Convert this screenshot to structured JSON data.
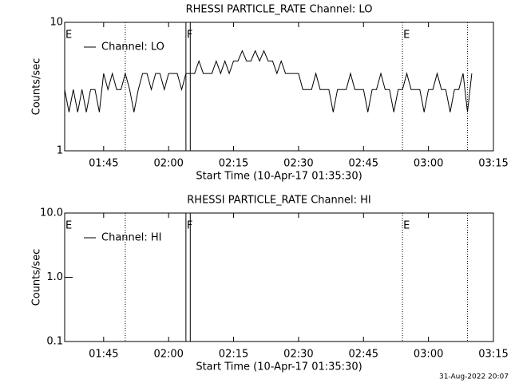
{
  "chart_data": [
    {
      "type": "line",
      "title": "RHESSI PARTICLE_RATE Channel: LO",
      "x_label": "Start Time (10-Apr-17 01:35:30)",
      "y_label": "Counts/sec",
      "log_scale": true,
      "xlim": [
        "01:36",
        "03:15"
      ],
      "xticks": [
        "01:45",
        "02:00",
        "02:15",
        "02:30",
        "02:45",
        "03:00",
        "03:15"
      ],
      "ylim": [
        1,
        10
      ],
      "yticks": [
        1,
        10
      ],
      "flags": [
        {
          "label": "E",
          "x": "01:36"
        },
        {
          "label": "F",
          "x": "02:04"
        },
        {
          "label": "E",
          "x": "02:54"
        }
      ],
      "lines": [
        {
          "x": "01:50",
          "style": "dotted"
        },
        {
          "x": "02:04",
          "style": "solid"
        },
        {
          "x": "02:05",
          "style": "solid"
        },
        {
          "x": "02:54",
          "style": "dotted"
        },
        {
          "x": "03:09",
          "style": "dotted"
        }
      ],
      "series": [
        {
          "name": "Channel: LO",
          "color": "#000000",
          "x": [
            "01:36",
            "01:37",
            "01:38",
            "01:39",
            "01:40",
            "01:41",
            "01:42",
            "01:43",
            "01:44",
            "01:45",
            "01:46",
            "01:47",
            "01:48",
            "01:49",
            "01:50",
            "01:51",
            "01:52",
            "01:53",
            "01:54",
            "01:55",
            "01:56",
            "01:57",
            "01:58",
            "01:59",
            "02:00",
            "02:01",
            "02:02",
            "02:03",
            "02:04",
            "02:05",
            "02:06",
            "02:07",
            "02:08",
            "02:09",
            "02:10",
            "02:11",
            "02:12",
            "02:13",
            "02:14",
            "02:15",
            "02:16",
            "02:17",
            "02:18",
            "02:19",
            "02:20",
            "02:21",
            "02:22",
            "02:23",
            "02:24",
            "02:25",
            "02:26",
            "02:27",
            "02:28",
            "02:29",
            "02:30",
            "02:31",
            "02:32",
            "02:33",
            "02:34",
            "02:35",
            "02:36",
            "02:37",
            "02:38",
            "02:39",
            "02:40",
            "02:41",
            "02:42",
            "02:43",
            "02:44",
            "02:45",
            "02:46",
            "02:47",
            "02:48",
            "02:49",
            "02:50",
            "02:51",
            "02:52",
            "02:53",
            "02:54",
            "02:55",
            "02:56",
            "02:57",
            "02:58",
            "02:59",
            "03:00",
            "03:01",
            "03:02",
            "03:03",
            "03:04",
            "03:05",
            "03:06",
            "03:07",
            "03:08",
            "03:09",
            "03:10"
          ],
          "values": [
            3,
            2,
            3,
            2,
            3,
            2,
            3,
            3,
            2,
            4,
            3,
            4,
            3,
            3,
            4,
            3,
            2,
            3,
            4,
            4,
            3,
            4,
            4,
            3,
            4,
            4,
            4,
            3,
            4,
            4,
            4,
            5,
            4,
            4,
            4,
            5,
            4,
            5,
            4,
            5,
            5,
            6,
            5,
            5,
            6,
            5,
            6,
            5,
            5,
            4,
            5,
            4,
            4,
            4,
            4,
            3,
            3,
            3,
            4,
            3,
            3,
            3,
            2,
            3,
            3,
            3,
            4,
            3,
            3,
            3,
            2,
            3,
            3,
            4,
            3,
            3,
            2,
            3,
            3,
            4,
            3,
            3,
            3,
            2,
            3,
            3,
            4,
            3,
            3,
            2,
            3,
            3,
            4,
            2,
            4
          ]
        }
      ]
    },
    {
      "type": "line",
      "title": "RHESSI PARTICLE_RATE Channel: HI",
      "x_label": "Start Time (10-Apr-17 01:35:30)",
      "y_label": "Counts/sec",
      "log_scale": true,
      "xlim": [
        "01:36",
        "03:15"
      ],
      "xticks": [
        "01:45",
        "02:00",
        "02:15",
        "02:30",
        "02:45",
        "03:00",
        "03:15"
      ],
      "ylim": [
        0.1,
        10
      ],
      "yticks": [
        {
          "value": 0.1,
          "label": "0.1"
        },
        {
          "value": 1,
          "label": "1.0"
        },
        {
          "value": 10,
          "label": "10.0"
        }
      ],
      "flags": [
        {
          "label": "E",
          "x": "01:36"
        },
        {
          "label": "F",
          "x": "02:04"
        },
        {
          "label": "E",
          "x": "02:54"
        }
      ],
      "lines": [
        {
          "x": "01:50",
          "style": "dotted"
        },
        {
          "x": "02:04",
          "style": "solid"
        },
        {
          "x": "02:05",
          "style": "solid"
        },
        {
          "x": "02:54",
          "style": "dotted"
        },
        {
          "x": "03:09",
          "style": "dotted"
        }
      ],
      "series": [
        {
          "name": "Channel: HI",
          "color": "#000000",
          "x": [],
          "values": []
        }
      ]
    }
  ],
  "footer": "31-Aug-2022 20:07"
}
